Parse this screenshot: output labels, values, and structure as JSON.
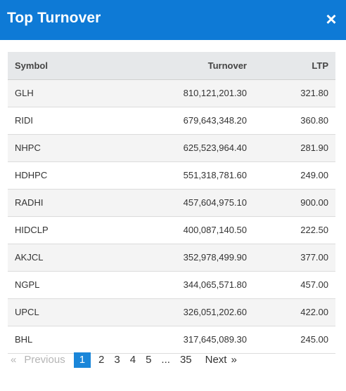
{
  "modal": {
    "title": "Top Turnover",
    "close_icon": "×"
  },
  "table": {
    "columns": [
      "Symbol",
      "Turnover",
      "LTP"
    ],
    "rows": [
      [
        "GLH",
        "810,121,201.30",
        "321.80"
      ],
      [
        "RIDI",
        "679,643,348.20",
        "360.80"
      ],
      [
        "NHPC",
        "625,523,964.40",
        "281.90"
      ],
      [
        "HDHPC",
        "551,318,781.60",
        "249.00"
      ],
      [
        "RADHI",
        "457,604,975.10",
        "900.00"
      ],
      [
        "HIDCLP",
        "400,087,140.50",
        "222.50"
      ],
      [
        "AKJCL",
        "352,978,499.90",
        "377.00"
      ],
      [
        "NGPL",
        "344,065,571.80",
        "457.00"
      ],
      [
        "UPCL",
        "326,051,202.60",
        "422.00"
      ],
      [
        "BHL",
        "317,645,089.30",
        "245.00"
      ]
    ]
  },
  "pagination": {
    "first_arrow": "«",
    "previous": "Previous",
    "pages": [
      "1",
      "2",
      "3",
      "4",
      "5"
    ],
    "ellipsis": "...",
    "last_page": "35",
    "next": "Next",
    "last_arrow": "»",
    "current": "1"
  },
  "colors": {
    "header": "#0e7ad6",
    "active_page": "#1a86d9"
  }
}
